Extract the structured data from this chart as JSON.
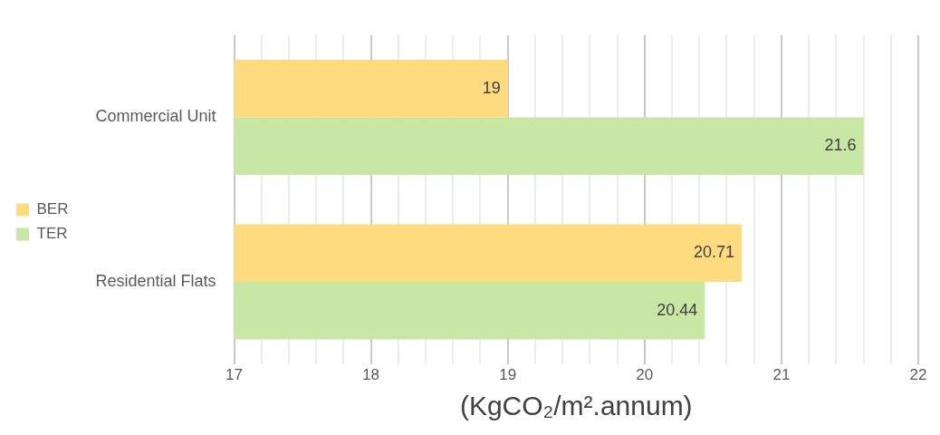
{
  "chart_data": {
    "type": "bar",
    "orientation": "horizontal",
    "categories": [
      "Commercial Unit",
      "Residential Flats"
    ],
    "series": [
      {
        "name": "BER",
        "color": "#fedb7e",
        "values": [
          19,
          20.71
        ]
      },
      {
        "name": "TER",
        "color": "#c8e6a4",
        "values": [
          21.6,
          20.44
        ]
      }
    ],
    "xlim": [
      17,
      22
    ],
    "xticks": [
      17,
      {
        "value": 17.2,
        "label": null
      },
      {
        "value": 17.4,
        "label": null
      },
      {
        "value": 17.6,
        "label": null
      },
      {
        "value": 17.8,
        "label": null
      },
      18,
      {
        "value": 18.2,
        "label": null
      },
      {
        "value": 18.4,
        "label": null
      },
      {
        "value": 18.6,
        "label": null
      },
      {
        "value": 18.8,
        "label": null
      },
      19,
      {
        "value": 19.2,
        "label": null
      },
      {
        "value": 19.4,
        "label": null
      },
      {
        "value": 19.6,
        "label": null
      },
      {
        "value": 19.8,
        "label": null
      },
      20,
      {
        "value": 20.2,
        "label": null
      },
      {
        "value": 20.4,
        "label": null
      },
      {
        "value": 20.6,
        "label": null
      },
      {
        "value": 20.8,
        "label": null
      },
      21,
      {
        "value": 21.2,
        "label": null
      },
      {
        "value": 21.4,
        "label": null
      },
      {
        "value": 21.6,
        "label": null
      },
      {
        "value": 21.8,
        "label": null
      },
      22
    ],
    "xlabel": "(KgCO₂/m².annum)",
    "grid": "x",
    "legend": "left",
    "data_labels": true
  }
}
